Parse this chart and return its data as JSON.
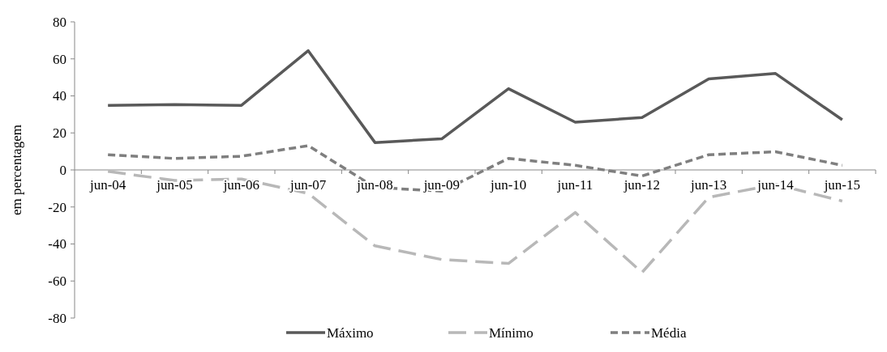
{
  "chart_data": {
    "type": "line",
    "ylabel": "em percentagem",
    "categories": [
      "jun-04",
      "jun-05",
      "jun-06",
      "jun-07",
      "jun-08",
      "jun-09",
      "jun-10",
      "jun-11",
      "jun-12",
      "jun-13",
      "jun-14",
      "jun-15"
    ],
    "series": [
      {
        "name": "Máximo",
        "color": "#595959",
        "line_style": "solid",
        "values": [
          34.9,
          35.3,
          34.9,
          64.4,
          14.8,
          16.8,
          43.9,
          25.8,
          28.3,
          49.2,
          52.1,
          27.1
        ]
      },
      {
        "name": "Mínimo",
        "color": "#b8b8b8",
        "line_style": "dashed",
        "values": [
          -0.8,
          -5.7,
          -4.9,
          -12.7,
          -41,
          -48.4,
          -50.5,
          -23,
          -55.4,
          -14.8,
          -7.8,
          -16.8
        ]
      },
      {
        "name": "Média",
        "color": "#7f7f7f",
        "line_style": "dotted",
        "values": [
          8.2,
          6.2,
          7.4,
          13.1,
          -9.4,
          -11.5,
          6.2,
          2.5,
          -3.3,
          8.2,
          9.8,
          2.5
        ]
      }
    ],
    "ylim": [
      -80,
      80
    ],
    "yticks": [
      -80,
      -60,
      -40,
      -20,
      0,
      20,
      40,
      60,
      80
    ],
    "grid": false,
    "legend": "bottom"
  }
}
